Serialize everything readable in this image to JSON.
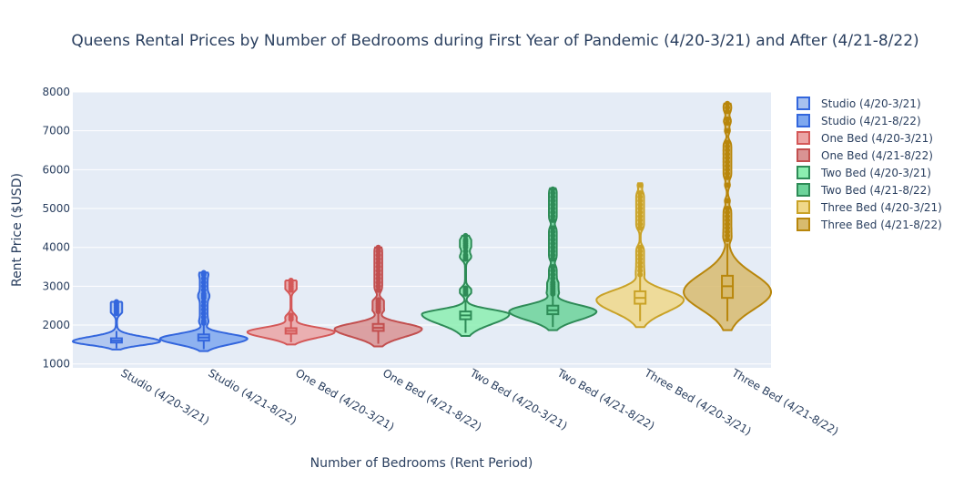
{
  "chart_data": {
    "type": "violin",
    "title": "Queens Rental Prices by Number of Bedrooms during First Year of Pandemic (4/20-3/21) and After (4/21-8/22)",
    "xlabel": "Number of Bedrooms (Rent Period)",
    "ylabel": "Rent Price ($USD)",
    "ylim": [
      900,
      8000
    ],
    "yticks": [
      1000,
      2000,
      3000,
      4000,
      5000,
      6000,
      7000,
      8000
    ],
    "grid": true,
    "legend_position": "right",
    "categories": [
      "Studio (4/20-3/21)",
      "Studio (4/21-8/22)",
      "One Bed (4/20-3/21)",
      "One Bed (4/21-8/22)",
      "Two Bed (4/20-3/21)",
      "Two Bed (4/21-8/22)",
      "Three Bed (4/20-3/21)",
      "Three Bed (4/21-8/22)"
    ],
    "series": [
      {
        "name": "Studio (4/20-3/21)",
        "color": "#3366dd",
        "fill": "#a8c1ef",
        "q1": 1550,
        "median": 1600,
        "q3": 1660,
        "whisker_low": 1400,
        "whisker_high": 1850,
        "min": 1370,
        "max": 2600,
        "kde_peak": 1580,
        "outliers": [
          2300,
          2350,
          2400,
          2450,
          2500,
          2550,
          2600
        ]
      },
      {
        "name": "Studio (4/21-8/22)",
        "color": "#3366dd",
        "fill": "#7fa8ef",
        "q1": 1600,
        "median": 1680,
        "q3": 1760,
        "whisker_low": 1380,
        "whisker_high": 2000,
        "min": 1330,
        "max": 3350,
        "kde_peak": 1650,
        "outliers": [
          2050,
          2100,
          2200,
          2300,
          2400,
          2500,
          2600,
          2700,
          2750,
          2800,
          2900,
          3000,
          3100,
          3200,
          3300,
          3350
        ]
      },
      {
        "name": "One Bed (4/20-3/21)",
        "color": "#d45858",
        "fill": "#eba5a5",
        "q1": 1780,
        "median": 1850,
        "q3": 1920,
        "whisker_low": 1560,
        "whisker_high": 2100,
        "min": 1500,
        "max": 3150,
        "kde_peak": 1820,
        "outliers": [
          2150,
          2200,
          2250,
          2900,
          2950,
          3000,
          3050,
          3100,
          3150
        ]
      },
      {
        "name": "One Bed (4/21-8/22)",
        "color": "#c24f4f",
        "fill": "#d99393",
        "q1": 1850,
        "median": 1930,
        "q3": 2030,
        "whisker_low": 1520,
        "whisker_high": 2300,
        "min": 1450,
        "max": 4000,
        "kde_peak": 1900,
        "outliers": [
          2350,
          2400,
          2450,
          2500,
          2550,
          2600,
          2650,
          2900,
          3000,
          3100,
          3200,
          3300,
          3400,
          3500,
          3600,
          3700,
          3800,
          3900,
          4000
        ]
      },
      {
        "name": "Two Bed (4/20-3/21)",
        "color": "#2e8b57",
        "fill": "#8ceeb0",
        "q1": 2150,
        "median": 2250,
        "q3": 2350,
        "whisker_low": 1800,
        "whisker_high": 2650,
        "min": 1720,
        "max": 4300,
        "kde_peak": 2280,
        "outliers": [
          2800,
          2850,
          2900,
          2950,
          3700,
          3750,
          3800,
          3900,
          4000,
          4050,
          4100,
          4150,
          4200,
          4300
        ]
      },
      {
        "name": "Two Bed (4/21-8/22)",
        "color": "#2e8b57",
        "fill": "#6cd39a",
        "q1": 2280,
        "median": 2380,
        "q3": 2500,
        "whisker_low": 1950,
        "whisker_high": 2750,
        "min": 1870,
        "max": 5520,
        "kde_peak": 2350,
        "outliers": [
          2800,
          2850,
          2900,
          2950,
          3000,
          3050,
          3100,
          3200,
          3300,
          3400,
          3500,
          3700,
          3800,
          3900,
          4000,
          4100,
          4200,
          4300,
          4400,
          4500,
          4700,
          4800,
          4900,
          5000,
          5100,
          5200,
          5300,
          5400,
          5500
        ]
      },
      {
        "name": "Three Bed (4/20-3/21)",
        "color": "#c9a227",
        "fill": "#f0d88a",
        "q1": 2550,
        "median": 2700,
        "q3": 2870,
        "whisker_low": 2100,
        "whisker_high": 3250,
        "min": 1950,
        "max": 5650,
        "kde_peak": 2650,
        "outliers": [
          3300,
          3400,
          3500,
          3600,
          3700,
          3800,
          3900,
          4000,
          4500,
          4600,
          4700,
          4800,
          4900,
          5000,
          5100,
          5200,
          5300,
          5400,
          5600
        ]
      },
      {
        "name": "Three Bed (4/21-8/22)",
        "color": "#b8860b",
        "fill": "#d8bb6e",
        "q1": 2700,
        "median": 3000,
        "q3": 3270,
        "whisker_low": 2100,
        "whisker_high": 4100,
        "min": 1870,
        "max": 7700,
        "kde_peak": 2850,
        "outliers": [
          4200,
          4300,
          4400,
          4500,
          4600,
          4700,
          4800,
          4900,
          5000,
          5200,
          5600,
          5800,
          5900,
          6000,
          6100,
          6200,
          6300,
          6400,
          6500,
          6600,
          6700,
          7000,
          7200,
          7300,
          7500,
          7600,
          7700
        ]
      }
    ]
  }
}
